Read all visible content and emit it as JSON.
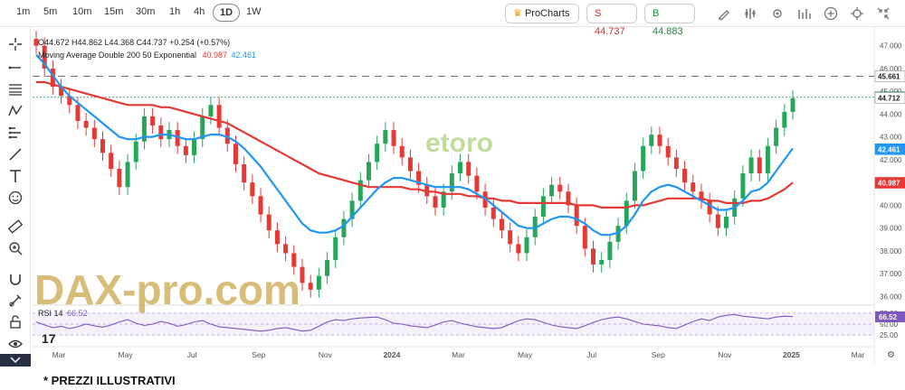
{
  "toolbar": {
    "timeframes": [
      "1m",
      "5m",
      "10m",
      "15m",
      "30m",
      "1h",
      "4h",
      "1D",
      "1W"
    ],
    "active_timeframe": "1D",
    "prochart_label": "ProCharts",
    "sell_label": "S 44.737",
    "buy_label": "B 44.883"
  },
  "legend": {
    "ohlc": "O44.672 H44.862 L44.368 C44.737 +0.254 (+0.57%)",
    "ma_label": "Moving Average Double 200 50 Exponential",
    "ma_value_1": "40.987",
    "ma_value_2": "42.461",
    "rsi_label": "RSI 14",
    "rsi_value": "66.52"
  },
  "watermark": {
    "etoro": "etoro",
    "dax": "DAX-pro.com"
  },
  "chart_data": {
    "type": "candlestick",
    "price_axis_ticks": [
      "47.000",
      "46.000",
      "45.000",
      "44.000",
      "43.000",
      "42.000",
      "41.000",
      "40.000",
      "39.000",
      "38.000",
      "37.000",
      "36.000"
    ],
    "rsi_axis_ticks": [
      "75.00",
      "50.00",
      "25.00"
    ],
    "time_axis_ticks": [
      "Mar",
      "May",
      "Jul",
      "Sep",
      "Nov",
      "2024",
      "Mar",
      "May",
      "Jul",
      "Sep",
      "Nov",
      "2025",
      "Mar"
    ],
    "price_range": [
      35.7,
      47.5
    ],
    "price_labels": [
      {
        "value": 45.661,
        "text": "45.661",
        "color": "#ffffff",
        "text_color": "#222222"
      },
      {
        "value": 44.737,
        "text": "44.737",
        "color": "#1a8a5a",
        "text_color": "#ffffff"
      },
      {
        "value": 44.712,
        "text": "44.712",
        "color": "#ffffff",
        "text_color": "#222222"
      },
      {
        "value": 42.461,
        "text": "42.461",
        "color": "#2196f3",
        "text_color": "#ffffff"
      },
      {
        "value": 40.987,
        "text": "40.987",
        "color": "#e53935",
        "text_color": "#ffffff"
      }
    ],
    "rsi_label_box": {
      "value": 66.52,
      "text": "66.52"
    },
    "dashed_level": 45.661,
    "close_level": 44.737,
    "close_series": [
      47.0,
      46.0,
      45.2,
      44.8,
      44.4,
      43.7,
      43.4,
      42.9,
      42.3,
      41.6,
      40.8,
      41.9,
      42.8,
      43.9,
      43.5,
      42.9,
      43.3,
      42.6,
      42.2,
      42.9,
      43.9,
      44.4,
      43.4,
      42.7,
      41.8,
      41.0,
      40.4,
      39.6,
      38.9,
      38.3,
      37.9,
      37.3,
      36.6,
      36.3,
      36.9,
      37.6,
      38.6,
      39.4,
      40.2,
      41.1,
      41.9,
      42.7,
      43.3,
      42.6,
      42.1,
      41.5,
      40.9,
      40.4,
      39.9,
      40.6,
      41.4,
      41.9,
      41.3,
      40.6,
      39.9,
      39.4,
      38.9,
      38.3,
      37.9,
      38.6,
      39.5,
      40.4,
      40.9,
      40.6,
      40.0,
      39.1,
      38.1,
      37.4,
      37.6,
      38.4,
      39.1,
      40.2,
      41.5,
      42.6,
      43.1,
      42.6,
      42.1,
      41.6,
      41.0,
      40.6,
      40.2,
      39.6,
      39.0,
      39.5,
      40.3,
      41.4,
      42.1,
      41.4,
      42.6,
      43.4,
      44.1,
      44.7
    ],
    "ma50_series": [
      46.6,
      46.2,
      45.7,
      45.2,
      44.8,
      44.5,
      44.2,
      43.9,
      43.6,
      43.3,
      43.0,
      42.9,
      42.9,
      43.0,
      43.0,
      43.1,
      43.1,
      43.0,
      42.9,
      42.9,
      43.0,
      43.1,
      43.1,
      43.0,
      42.8,
      42.5,
      42.1,
      41.7,
      41.2,
      40.7,
      40.2,
      39.7,
      39.2,
      38.9,
      38.8,
      38.8,
      38.9,
      39.1,
      39.5,
      39.9,
      40.3,
      40.7,
      41.0,
      41.2,
      41.2,
      41.1,
      41.0,
      40.9,
      40.8,
      40.8,
      40.8,
      40.8,
      40.7,
      40.5,
      40.3,
      40.0,
      39.7,
      39.4,
      39.1,
      39.0,
      39.0,
      39.2,
      39.4,
      39.5,
      39.5,
      39.4,
      39.2,
      38.9,
      38.7,
      38.7,
      38.8,
      39.1,
      39.6,
      40.2,
      40.6,
      40.8,
      40.9,
      40.8,
      40.6,
      40.4,
      40.2,
      40.0,
      39.8,
      39.8,
      39.9,
      40.2,
      40.6,
      40.7,
      41.0,
      41.5,
      42.0,
      42.5
    ],
    "ma200_series": [
      45.4,
      45.4,
      45.3,
      45.2,
      45.1,
      45.0,
      44.9,
      44.8,
      44.7,
      44.6,
      44.5,
      44.4,
      44.4,
      44.4,
      44.4,
      44.3,
      44.3,
      44.2,
      44.1,
      44.0,
      43.9,
      43.8,
      43.7,
      43.6,
      43.4,
      43.2,
      43.0,
      42.8,
      42.6,
      42.4,
      42.2,
      42.0,
      41.8,
      41.6,
      41.4,
      41.3,
      41.2,
      41.1,
      41.0,
      40.9,
      40.8,
      40.8,
      40.8,
      40.8,
      40.8,
      40.7,
      40.7,
      40.6,
      40.6,
      40.5,
      40.5,
      40.5,
      40.4,
      40.4,
      40.3,
      40.3,
      40.2,
      40.2,
      40.1,
      40.1,
      40.1,
      40.1,
      40.1,
      40.1,
      40.1,
      40.0,
      40.0,
      40.0,
      39.9,
      39.9,
      39.9,
      39.9,
      40.0,
      40.0,
      40.1,
      40.2,
      40.3,
      40.3,
      40.3,
      40.3,
      40.3,
      40.2,
      40.2,
      40.1,
      40.1,
      40.1,
      40.2,
      40.2,
      40.3,
      40.5,
      40.7,
      41.0
    ],
    "rsi_series": [
      55,
      48,
      42,
      45,
      40,
      44,
      50,
      46,
      43,
      48,
      55,
      60,
      52,
      47,
      50,
      56,
      52,
      45,
      49,
      55,
      58,
      50,
      44,
      42,
      40,
      38,
      36,
      34,
      36,
      40,
      42,
      38,
      34,
      36,
      45,
      55,
      60,
      58,
      62,
      64,
      65,
      66,
      60,
      52,
      50,
      46,
      44,
      42,
      48,
      55,
      58,
      52,
      48,
      44,
      42,
      40,
      42,
      50,
      58,
      62,
      60,
      54,
      48,
      44,
      42,
      40,
      46,
      54,
      60,
      64,
      66,
      62,
      56,
      50,
      48,
      46,
      42,
      40,
      48,
      56,
      62,
      58,
      66,
      70,
      72,
      68,
      66,
      64,
      62,
      66,
      68,
      67
    ]
  }
}
